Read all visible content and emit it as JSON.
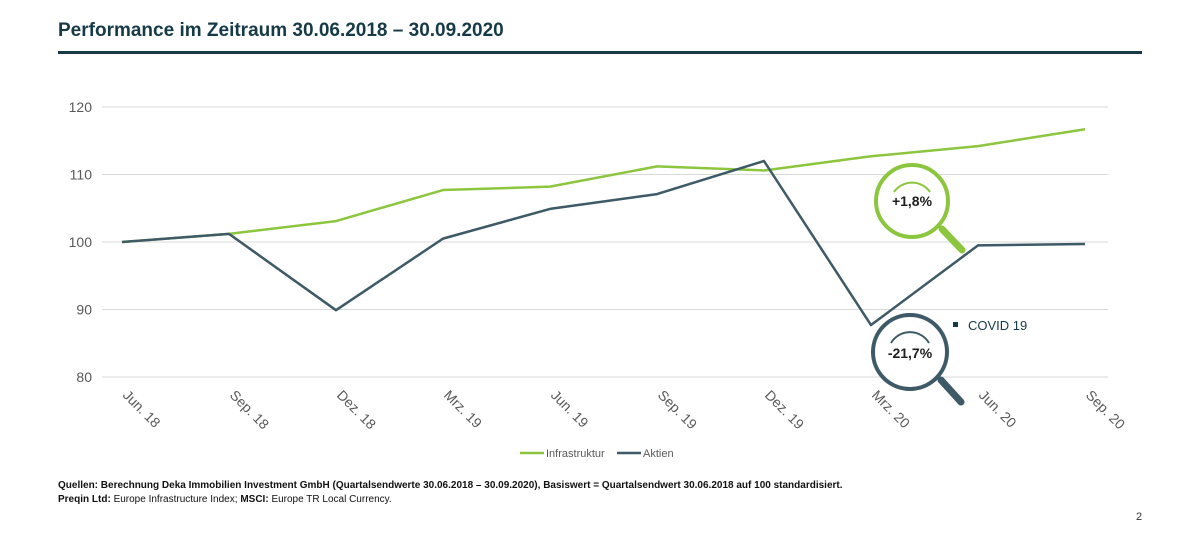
{
  "page": {
    "title": "Performance im Zeitraum 30.06.2018 – 30.09.2020",
    "page_number": "2"
  },
  "footer": {
    "line1_label": "Quellen:",
    "line1_text": "Berechnung Deka Immobilien Investment GmbH (Quartalsendwerte 30.06.2018 – 30.09.2020), Basiswert = Quartalsendwert 30.06.2018 auf 100 standardisiert.",
    "line2_preqin_label": "Preqin Ltd:",
    "line2_preqin_text": "Europe Infrastructure Index;",
    "line2_msci_label": "MSCI:",
    "line2_msci_text": "Europe TR Local Currency."
  },
  "colors": {
    "infrastruktur": "#8cc63f",
    "aktien": "#3d5a66",
    "title": "#163a46",
    "grid": "#d9d9d9",
    "axis_text": "#595959"
  },
  "chart_data": {
    "type": "line",
    "categories": [
      "Jun. 18",
      "Sep. 18",
      "Dez. 18",
      "Mrz. 19",
      "Jun. 19",
      "Sep. 19",
      "Dez. 19",
      "Mrz. 20",
      "Jun. 20",
      "Sep. 20"
    ],
    "series": [
      {
        "name": "Infrastruktur",
        "values": [
          100,
          101.2,
          103.1,
          107.7,
          108.2,
          111.2,
          110.6,
          112.7,
          114.2,
          116.7
        ]
      },
      {
        "name": "Aktien",
        "values": [
          100,
          101.2,
          89.9,
          100.5,
          104.9,
          107.1,
          112.0,
          87.7,
          99.5,
          99.7
        ]
      }
    ],
    "ylim": [
      80,
      120
    ],
    "yticks": [
      80,
      90,
      100,
      110,
      120
    ],
    "grid": true,
    "legend": "bottom",
    "annotations": {
      "positive": "+1,8%",
      "negative": "-21,7%",
      "covid_label": "COVID 19"
    }
  }
}
